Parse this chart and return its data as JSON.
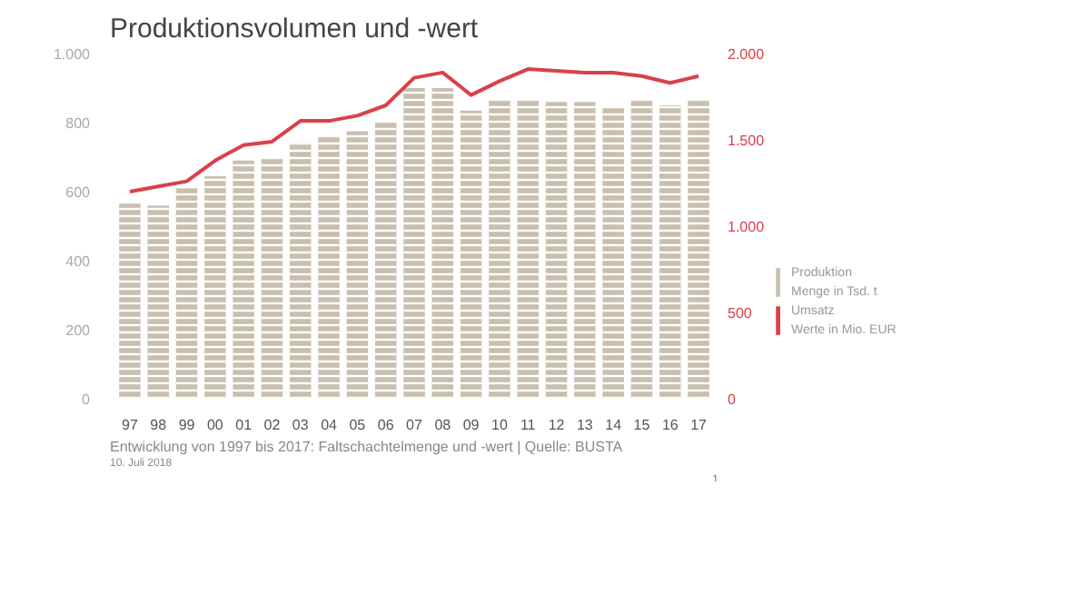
{
  "chart_data": {
    "type": "bar",
    "title": "Produktionsvolumen und -wert",
    "categories": [
      "97",
      "98",
      "99",
      "00",
      "01",
      "02",
      "03",
      "04",
      "05",
      "06",
      "07",
      "08",
      "09",
      "10",
      "11",
      "12",
      "13",
      "14",
      "15",
      "16",
      "17"
    ],
    "series": [
      {
        "name": "Produktion\nMenge in Tsd. t",
        "color": "#c8bfae",
        "values": [
          565,
          560,
          610,
          645,
          690,
          700,
          740,
          760,
          775,
          805,
          900,
          900,
          835,
          865,
          865,
          860,
          860,
          845,
          865,
          850,
          865
        ]
      },
      {
        "name": "Umsatz\nWerte in Mio. EUR",
        "type": "line",
        "axis": "y2",
        "color": "#d9414a",
        "values": [
          1200,
          1230,
          1260,
          1380,
          1470,
          1490,
          1610,
          1610,
          1640,
          1700,
          1860,
          1890,
          1760,
          1840,
          1910,
          1900,
          1890,
          1890,
          1870,
          1830,
          1870
        ]
      }
    ],
    "ylim": [
      0,
      1000
    ],
    "yticks": [
      0,
      200,
      400,
      600,
      800,
      {
        "value": 1000,
        "label": "1.000"
      }
    ],
    "y2lim": [
      0,
      2000
    ],
    "y2ticks": [
      0,
      500,
      {
        "value": 1000,
        "label": "1.000"
      },
      {
        "value": 1500,
        "label": "1.500"
      },
      {
        "value": 2000,
        "label": "2.000"
      }
    ],
    "legend": "bottom right",
    "grid": false,
    "annotations": [
      "Entwicklung von 1997 bis 2017: Faltschachtelmenge und -wert | Quelle: BUSTA",
      "10. Juli 2018",
      "1"
    ]
  }
}
